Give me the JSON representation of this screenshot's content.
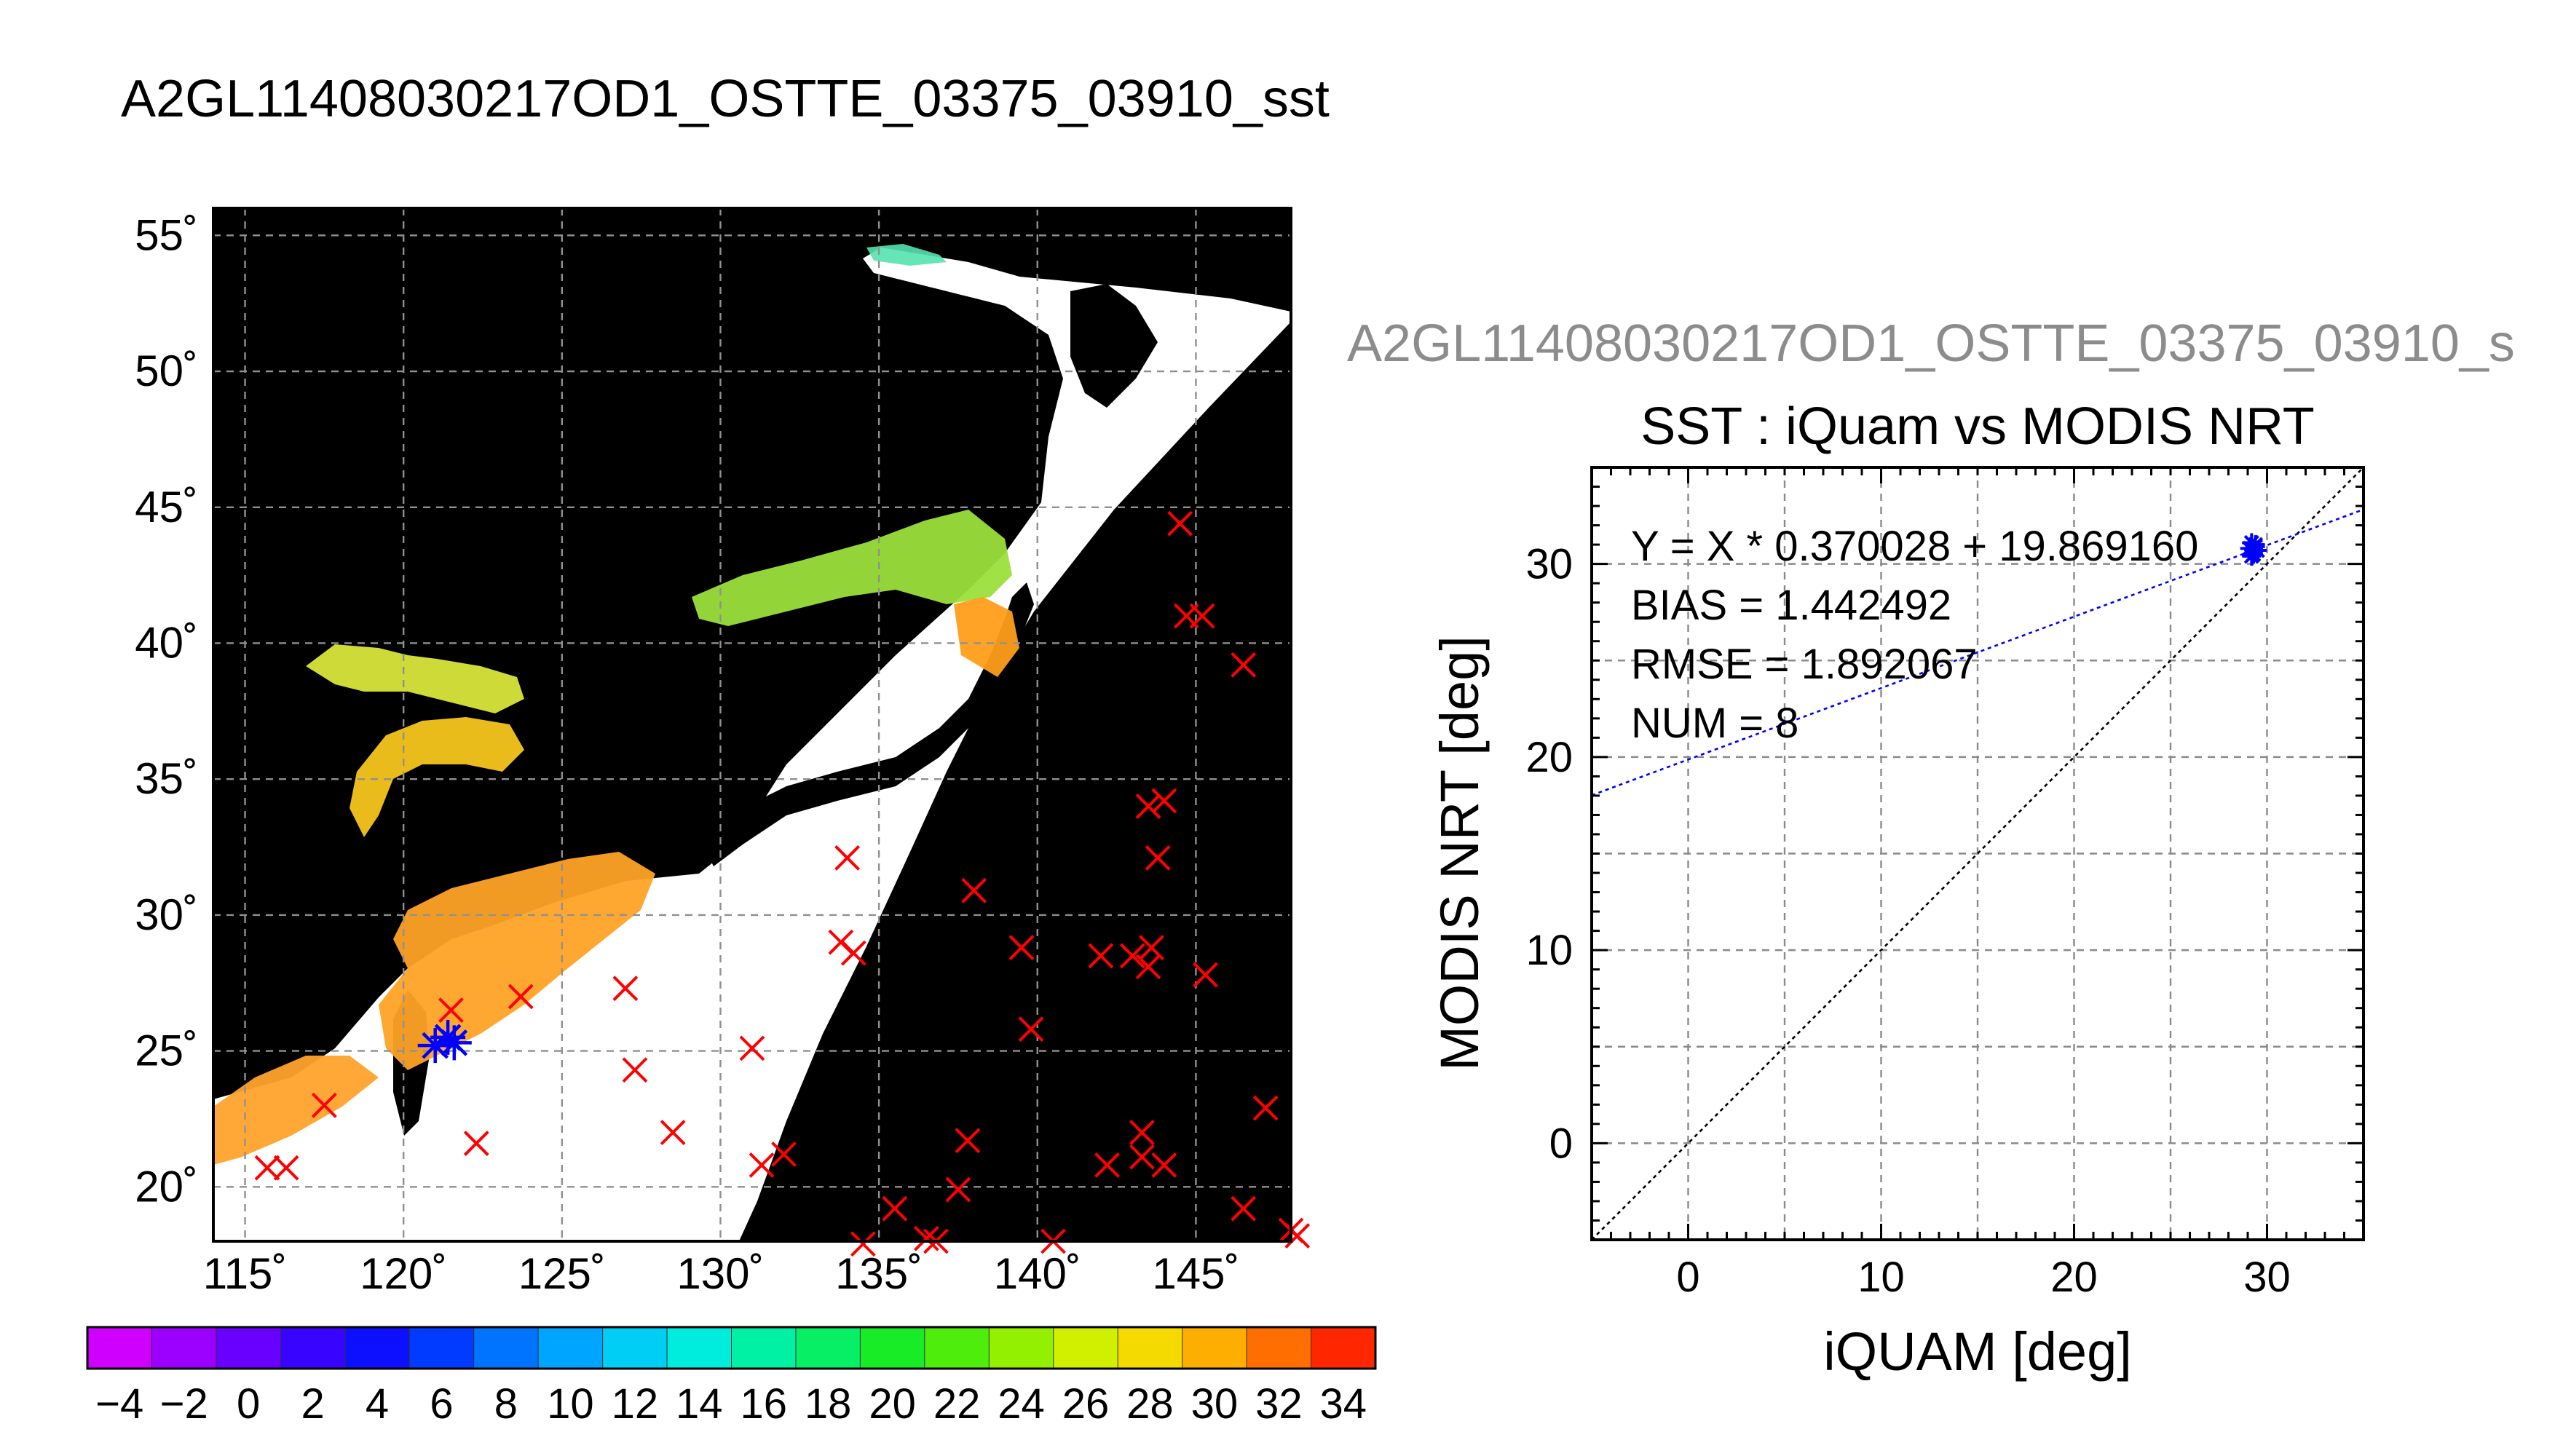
{
  "map_title": "A2GL11408030217OD1_OSTTE_03375_03910_sst",
  "scatter_suptitle": "A2GL11408030217OD1_OSTTE_03375_03910_s",
  "colors": {
    "land": "#000000",
    "swath": "#ffffff",
    "insitu_marker": "#ff0000",
    "matchup_marker": "#0000ff",
    "fit_line": "#0000ff",
    "identity_line": "#000000",
    "grid": "#888888",
    "suptitle_gray": "#8c8c8c"
  },
  "chart_data": [
    {
      "type": "map",
      "title": "A2GL11408030217OD1_OSTTE_03375_03910_sst",
      "lon_range": [
        114,
        148
      ],
      "lat_range": [
        18,
        56
      ],
      "lon_ticks": [
        115,
        120,
        125,
        130,
        135,
        140,
        145
      ],
      "lon_tick_labels": [
        "115˚",
        "120˚",
        "125˚",
        "130˚",
        "135˚",
        "140˚",
        "145˚"
      ],
      "lat_ticks": [
        20,
        25,
        30,
        35,
        40,
        45,
        50,
        55
      ],
      "lat_tick_labels": [
        "20˚",
        "25˚",
        "30˚",
        "35˚",
        "40˚",
        "45˚",
        "50˚",
        "55˚"
      ],
      "grid": true,
      "insitu_points_lonlat": [
        [
          115.7,
          20.7
        ],
        [
          116.3,
          20.7
        ],
        [
          117.5,
          23.0
        ],
        [
          121.5,
          26.5
        ],
        [
          122.3,
          21.6
        ],
        [
          123.7,
          27.0
        ],
        [
          127.0,
          27.3
        ],
        [
          127.3,
          24.3
        ],
        [
          128.5,
          22.0
        ],
        [
          131.0,
          25.1
        ],
        [
          131.3,
          20.8
        ],
        [
          132.0,
          21.2
        ],
        [
          134.0,
          32.1
        ],
        [
          133.8,
          29.0
        ],
        [
          134.2,
          28.6
        ],
        [
          134.5,
          17.9
        ],
        [
          135.5,
          19.2
        ],
        [
          136.5,
          18.1
        ],
        [
          136.8,
          18.0
        ],
        [
          137.5,
          19.9
        ],
        [
          137.8,
          21.7
        ],
        [
          138.0,
          30.9
        ],
        [
          139.5,
          28.8
        ],
        [
          139.8,
          25.8
        ],
        [
          140.5,
          18.0
        ],
        [
          142.0,
          28.5
        ],
        [
          142.2,
          20.8
        ],
        [
          143.0,
          28.5
        ],
        [
          143.3,
          21.1
        ],
        [
          143.3,
          22.0
        ],
        [
          143.5,
          28.1
        ],
        [
          143.6,
          28.8
        ],
        [
          143.5,
          34.0
        ],
        [
          143.8,
          32.1
        ],
        [
          144.0,
          34.2
        ],
        [
          144.0,
          20.8
        ],
        [
          144.5,
          44.4
        ],
        [
          144.7,
          41.0
        ],
        [
          145.2,
          41.0
        ],
        [
          145.3,
          27.8
        ],
        [
          146.5,
          39.2
        ],
        [
          146.5,
          19.2
        ],
        [
          147.2,
          22.9
        ],
        [
          148.0,
          18.4
        ],
        [
          148.2,
          18.2
        ]
      ],
      "matchup_points_lonlat": [
        [
          121.0,
          25.2
        ],
        [
          121.4,
          25.5
        ],
        [
          121.6,
          25.3
        ]
      ]
    },
    {
      "type": "colorbar",
      "tick_labels": [
        "−4",
        "−2",
        "0",
        "2",
        "4",
        "6",
        "8",
        "10",
        "12",
        "14",
        "16",
        "18",
        "20",
        "22",
        "24",
        "26",
        "28",
        "30",
        "32",
        "34"
      ],
      "range": [
        -5,
        35
      ]
    },
    {
      "type": "scatter",
      "title": "SST : iQuam vs MODIS NRT",
      "xlabel": "iQUAM [deg]",
      "ylabel": "MODIS NRT [deg]",
      "xlim": [
        -5,
        35
      ],
      "ylim": [
        -5,
        35
      ],
      "xticks": [
        0,
        10,
        20,
        30
      ],
      "yticks": [
        0,
        10,
        20,
        30
      ],
      "grid": true,
      "points": [
        {
          "x": 29.2,
          "y": 30.4
        },
        {
          "x": 29.3,
          "y": 30.8
        },
        {
          "x": 29.4,
          "y": 31.0
        },
        {
          "x": 29.2,
          "y": 31.1
        },
        {
          "x": 29.5,
          "y": 30.7
        },
        {
          "x": 29.3,
          "y": 30.5
        },
        {
          "x": 29.4,
          "y": 30.9
        },
        {
          "x": 29.1,
          "y": 30.8
        }
      ],
      "fit": {
        "slope": 0.370028,
        "intercept": 19.86916
      },
      "stats": {
        "equation": "Y = X * 0.370028 + 19.869160",
        "bias": "BIAS = 1.442492",
        "rmse": "RMSE = 1.892067",
        "num": "NUM = 8"
      }
    }
  ]
}
